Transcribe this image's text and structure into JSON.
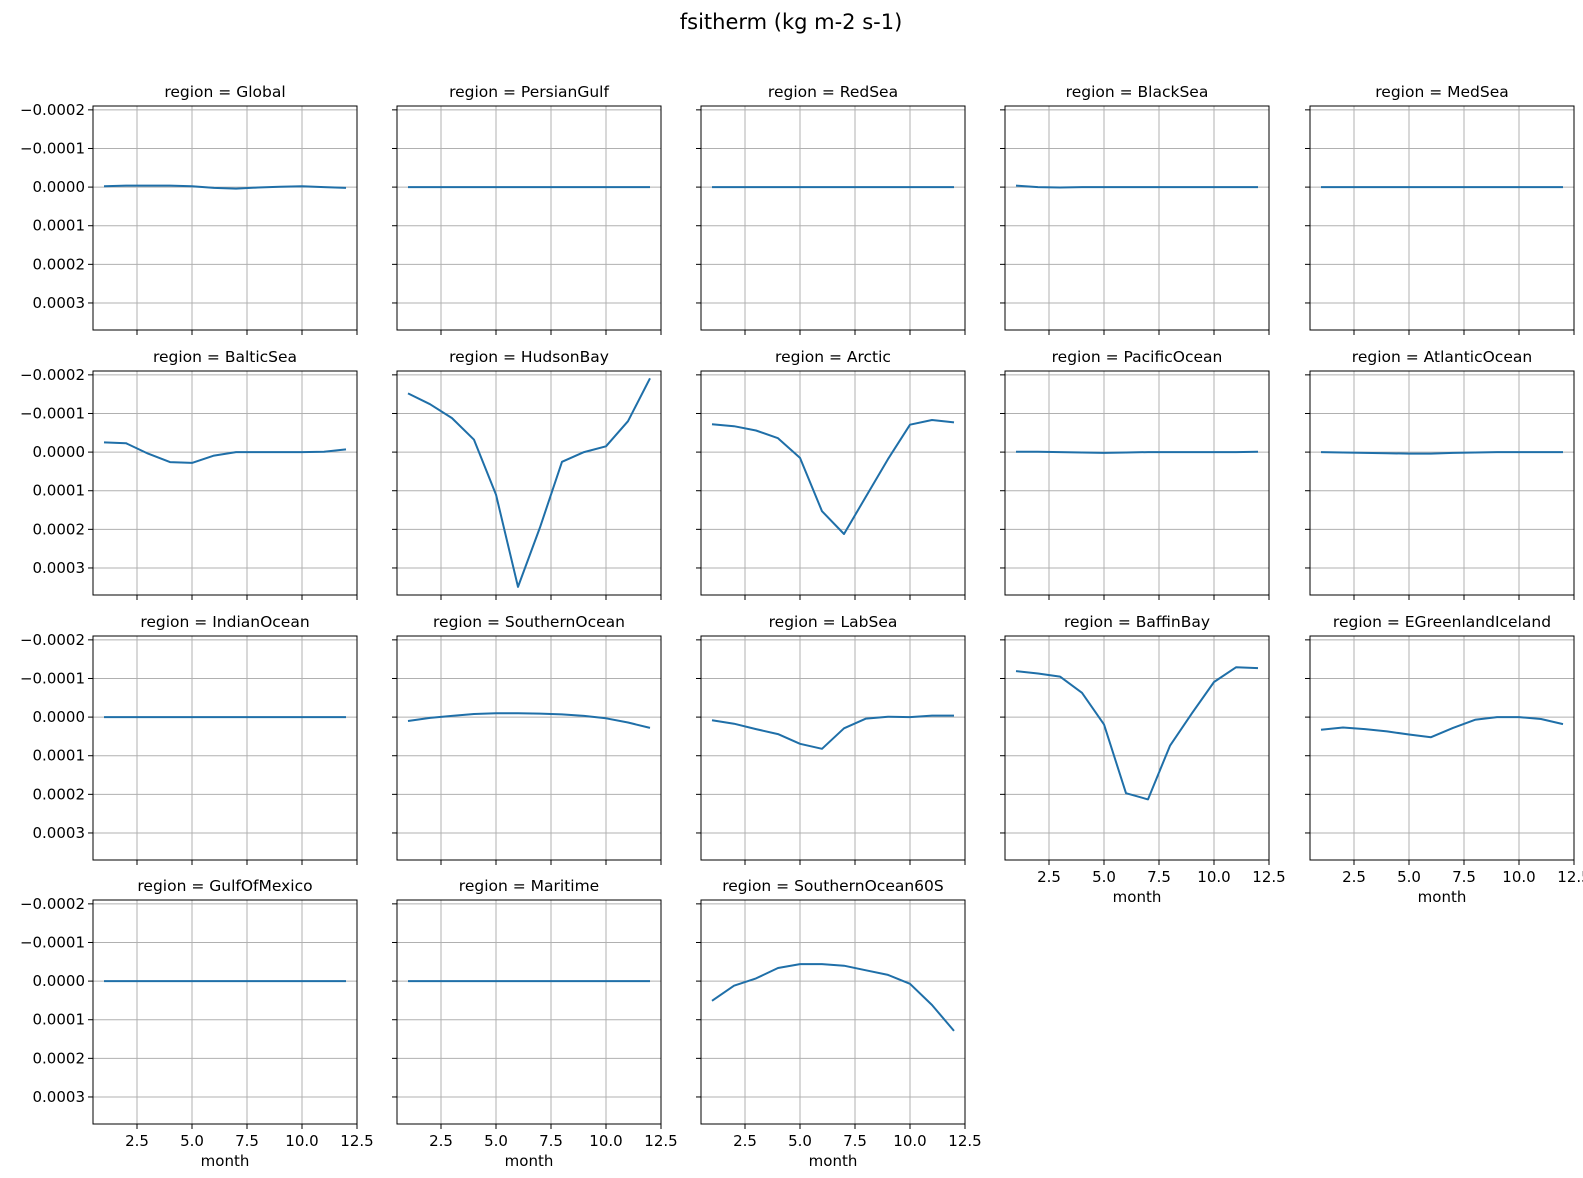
{
  "figure": {
    "suptitle": "fsitherm (kg m-2 s-1)",
    "line_color": "#1f6fa8",
    "grid_color": "#b0b0b0"
  },
  "chart_data": {
    "type": "line",
    "title": "fsitherm (kg m-2 s-1)",
    "xlabel": "month",
    "ylabel": "",
    "xlim": [
      0.5,
      12.5
    ],
    "ylim": [
      -0.00021,
      0.00037
    ],
    "y_inverted": true,
    "x_ticks": [
      2.5,
      5.0,
      7.5,
      10.0,
      12.5
    ],
    "x_tick_labels": [
      "2.5",
      "5.0",
      "7.5",
      "10.0",
      "12.5"
    ],
    "y_ticks": [
      -0.0002,
      -0.0001,
      0.0,
      0.0001,
      0.0002,
      0.0003
    ],
    "y_tick_labels": [
      "−0.0002",
      "−0.0001",
      "0.0000",
      "0.0001",
      "0.0002",
      "0.0003"
    ],
    "grid": true,
    "x": [
      1,
      2,
      3,
      4,
      5,
      6,
      7,
      8,
      9,
      10,
      11,
      12
    ],
    "panels": [
      {
        "title": "region = Global",
        "values": [
          -2e-06,
          -4e-06,
          -4e-06,
          -4e-06,
          -2e-06,
          2e-06,
          4e-06,
          1e-06,
          -1e-06,
          -2e-06,
          0.0,
          2e-06
        ]
      },
      {
        "title": "region = PersianGulf",
        "values": [
          0,
          0,
          0,
          0,
          0,
          0,
          0,
          0,
          0,
          0,
          0,
          0
        ]
      },
      {
        "title": "region = RedSea",
        "values": [
          0,
          0,
          0,
          0,
          0,
          0,
          0,
          0,
          0,
          0,
          0,
          0
        ]
      },
      {
        "title": "region = BlackSea",
        "values": [
          -4e-06,
          0.0,
          1e-06,
          0.0,
          0.0,
          0.0,
          0.0,
          0.0,
          0.0,
          0.0,
          0.0,
          0.0
        ]
      },
      {
        "title": "region = MedSea",
        "values": [
          0,
          0,
          0,
          0,
          0,
          0,
          0,
          0,
          0,
          0,
          0,
          0
        ]
      },
      {
        "title": "region = BalticSea",
        "values": [
          -2.5e-05,
          -2.3e-05,
          4e-06,
          2.6e-05,
          2.8e-05,
          9e-06,
          0.0,
          0.0,
          0.0,
          0.0,
          -1e-06,
          -7e-06
        ]
      },
      {
        "title": "region = HudsonBay",
        "values": [
          -0.000152,
          -0.000124,
          -8.8e-05,
          -3.2e-05,
          0.00011,
          0.000349,
          0.000195,
          2.5e-05,
          0.0,
          -1.5e-05,
          -8e-05,
          -0.000191
        ]
      },
      {
        "title": "region = Arctic",
        "values": [
          -7.2e-05,
          -6.7e-05,
          -5.6e-05,
          -3.6e-05,
          1.5e-05,
          0.000153,
          0.000212,
          0.000115,
          1.8e-05,
          -7.1e-05,
          -8.3e-05,
          -7.7e-05
        ]
      },
      {
        "title": "region = PacificOcean",
        "values": [
          -1e-06,
          -1e-06,
          0.0,
          1e-06,
          2e-06,
          1e-06,
          0.0,
          0.0,
          0.0,
          0.0,
          0.0,
          -1e-06
        ]
      },
      {
        "title": "region = AtlanticOcean",
        "values": [
          0.0,
          1e-06,
          2e-06,
          3e-06,
          4e-06,
          4e-06,
          2e-06,
          1e-06,
          0.0,
          0.0,
          0.0,
          0.0
        ]
      },
      {
        "title": "region = IndianOcean",
        "values": [
          0,
          0,
          0,
          0,
          0,
          0,
          0,
          0,
          0,
          0,
          0,
          0
        ]
      },
      {
        "title": "region = SouthernOcean",
        "values": [
          1e-05,
          2e-06,
          -3e-06,
          -8e-06,
          -1e-05,
          -1e-05,
          -9e-06,
          -7e-06,
          -3e-06,
          3e-06,
          1.4e-05,
          2.8e-05
        ]
      },
      {
        "title": "region = LabSea",
        "values": [
          8e-06,
          1.7e-05,
          3.1e-05,
          4.4e-05,
          6.9e-05,
          8.2e-05,
          2.9e-05,
          4e-06,
          -1e-06,
          0.0,
          -4e-06,
          -4e-06
        ]
      },
      {
        "title": "region = BaffinBay",
        "values": [
          -0.000119,
          -0.000113,
          -0.000105,
          -6.3e-05,
          1.9e-05,
          0.000197,
          0.000213,
          7.4e-05,
          -1e-05,
          -9.1e-05,
          -0.000129,
          -0.000127
        ]
      },
      {
        "title": "region = EGreenlandIceland",
        "values": [
          3.3e-05,
          2.7e-05,
          3.1e-05,
          3.7e-05,
          4.5e-05,
          5.2e-05,
          2.8e-05,
          7e-06,
          0.0,
          0.0,
          5e-06,
          1.8e-05
        ]
      },
      {
        "title": "region = GulfOfMexico",
        "values": [
          0,
          0,
          0,
          0,
          0,
          0,
          0,
          0,
          0,
          0,
          0,
          0
        ]
      },
      {
        "title": "region = Maritime",
        "values": [
          0,
          0,
          0,
          0,
          0,
          0,
          0,
          0,
          0,
          0,
          0,
          0
        ]
      },
      {
        "title": "region = SouthernOcean60S",
        "values": [
          5.1e-05,
          1.2e-05,
          -7e-06,
          -3.4e-05,
          -4.4e-05,
          -4.4e-05,
          -4e-05,
          -2.8e-05,
          -1.6e-05,
          7e-06,
          6.2e-05,
          0.000129
        ]
      }
    ]
  }
}
